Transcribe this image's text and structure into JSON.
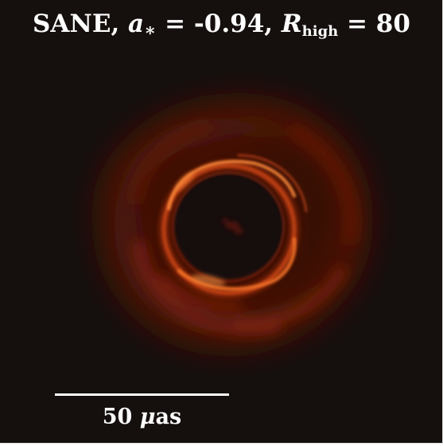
{
  "figure": {
    "title": {
      "model": "SANE,",
      "spin_symbol": "a",
      "spin_subscript": "∗",
      "spin_eq": " = -0.94,",
      "r_symbol": "R",
      "r_subscript": "high",
      "r_eq": " = 80"
    },
    "scalebar": {
      "value": "50",
      "unit_prefix": "μ",
      "unit": "as"
    },
    "colors": {
      "background": "#150f0d",
      "ring_bright": "#ff8a3a",
      "ring_mid": "#c2390d",
      "ring_dim": "#5a1608",
      "text": "#ffffff"
    }
  }
}
